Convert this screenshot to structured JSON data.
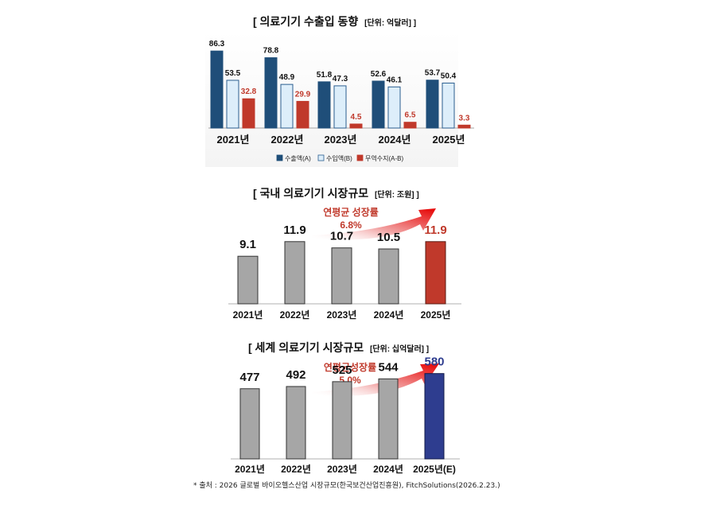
{
  "colors": {
    "export": "#1f4e79",
    "import": "#ddeefa",
    "balance": "#c0392b",
    "grey_bar": "#a6a6a6",
    "highlight_red": "#c0392b",
    "highlight_blue": "#2e3d8f"
  },
  "chart_data": [
    {
      "type": "bar",
      "title": "[ 의료기기 수출입 동향",
      "title_unit": "[단위: 억달러] ]",
      "categories": [
        "2021년",
        "2022년",
        "2023년",
        "2024년",
        "2025년"
      ],
      "series": [
        {
          "name": "수출액(A)",
          "values": [
            86.3,
            78.8,
            51.8,
            52.6,
            53.7
          ]
        },
        {
          "name": "수입액(B)",
          "values": [
            53.5,
            48.9,
            47.3,
            46.1,
            50.4
          ]
        },
        {
          "name": "무역수지(A-B)",
          "values": [
            32.8,
            29.9,
            4.5,
            6.5,
            3.3
          ]
        }
      ],
      "ylim": [
        0,
        100
      ],
      "legend": "bottom",
      "grid": false
    },
    {
      "type": "bar",
      "title": "[ 국내 의료기기 시장규모",
      "title_unit": "[단위: 조원] ]",
      "categories": [
        "2021년",
        "2022년",
        "2023년",
        "2024년",
        "2025년"
      ],
      "values": [
        9.1,
        11.9,
        10.7,
        10.5,
        11.9
      ],
      "value_labels": [
        "9.1",
        "11.9",
        "10.7",
        "10.5",
        "11.9"
      ],
      "annotation_line1": "연평균 성장률",
      "annotation_line2": "6.8%",
      "ylim": [
        0,
        14
      ],
      "highlight_last": "red",
      "grid": false
    },
    {
      "type": "bar",
      "title": "[ 세계 의료기기 시장규모",
      "title_unit": "[단위: 십억달러] ]",
      "categories": [
        "2021년",
        "2022년",
        "2023년",
        "2024년",
        "2025년(E)"
      ],
      "values": [
        477,
        492,
        525,
        544,
        580
      ],
      "value_labels": [
        "477",
        "492",
        "525",
        "544",
        "580"
      ],
      "annotation_line1": "연평균성장률",
      "annotation_line2": "5.0%",
      "ylim": [
        0,
        600
      ],
      "highlight_last": "blue",
      "grid": false
    }
  ],
  "footnote": "* 출처 : 2026 글로벌 바이오헬스산업 시장규모(한국보건산업진흥원), FitchSolutions(2026.2.23.)"
}
